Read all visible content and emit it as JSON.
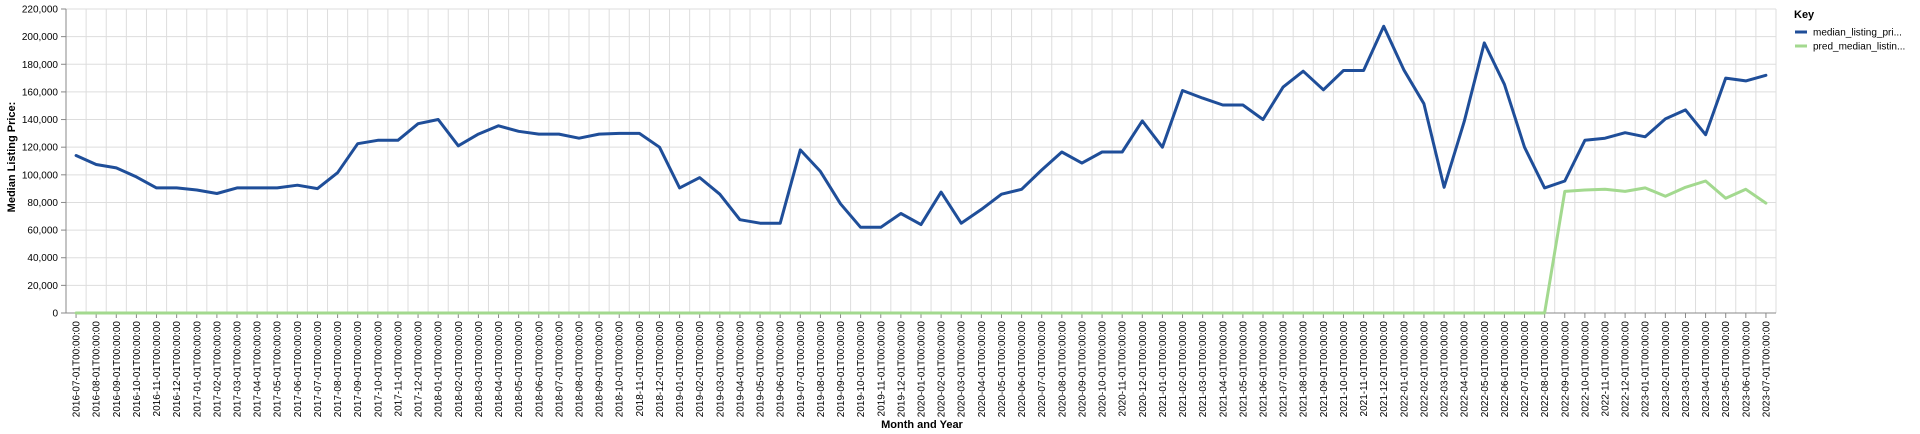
{
  "chart_data": {
    "type": "line",
    "xlabel": "Month and Year",
    "ylabel": "Median Listing Price:",
    "ylim": [
      0,
      220000
    ],
    "yticks": [
      "0",
      "20,000",
      "40,000",
      "60,000",
      "80,000",
      "100,000",
      "120,000",
      "140,000",
      "160,000",
      "180,000",
      "200,000",
      "220,000"
    ],
    "grid": true,
    "legend_position": "right",
    "legend_title": "Key",
    "categories": [
      "2016-07-01T00:00:00",
      "2016-08-01T00:00:00",
      "2016-09-01T00:00:00",
      "2016-10-01T00:00:00",
      "2016-11-01T00:00:00",
      "2016-12-01T00:00:00",
      "2017-01-01T00:00:00",
      "2017-02-01T00:00:00",
      "2017-03-01T00:00:00",
      "2017-04-01T00:00:00",
      "2017-05-01T00:00:00",
      "2017-06-01T00:00:00",
      "2017-07-01T00:00:00",
      "2017-08-01T00:00:00",
      "2017-09-01T00:00:00",
      "2017-10-01T00:00:00",
      "2017-11-01T00:00:00",
      "2017-12-01T00:00:00",
      "2018-01-01T00:00:00",
      "2018-02-01T00:00:00",
      "2018-03-01T00:00:00",
      "2018-04-01T00:00:00",
      "2018-05-01T00:00:00",
      "2018-06-01T00:00:00",
      "2018-07-01T00:00:00",
      "2018-08-01T00:00:00",
      "2018-09-01T00:00:00",
      "2018-10-01T00:00:00",
      "2018-11-01T00:00:00",
      "2018-12-01T00:00:00",
      "2019-01-01T00:00:00",
      "2019-02-01T00:00:00",
      "2019-03-01T00:00:00",
      "2019-04-01T00:00:00",
      "2019-05-01T00:00:00",
      "2019-06-01T00:00:00",
      "2019-07-01T00:00:00",
      "2019-08-01T00:00:00",
      "2019-09-01T00:00:00",
      "2019-10-01T00:00:00",
      "2019-11-01T00:00:00",
      "2019-12-01T00:00:00",
      "2020-01-01T00:00:00",
      "2020-02-01T00:00:00",
      "2020-03-01T00:00:00",
      "2020-04-01T00:00:00",
      "2020-05-01T00:00:00",
      "2020-06-01T00:00:00",
      "2020-07-01T00:00:00",
      "2020-08-01T00:00:00",
      "2020-09-01T00:00:00",
      "2020-10-01T00:00:00",
      "2020-11-01T00:00:00",
      "2020-12-01T00:00:00",
      "2021-01-01T00:00:00",
      "2021-02-01T00:00:00",
      "2021-03-01T00:00:00",
      "2021-04-01T00:00:00",
      "2021-05-01T00:00:00",
      "2021-06-01T00:00:00",
      "2021-07-01T00:00:00",
      "2021-08-01T00:00:00",
      "2021-09-01T00:00:00",
      "2021-10-01T00:00:00",
      "2021-11-01T00:00:00",
      "2021-12-01T00:00:00",
      "2022-01-01T00:00:00",
      "2022-02-01T00:00:00",
      "2022-03-01T00:00:00",
      "2022-04-01T00:00:00",
      "2022-05-01T00:00:00",
      "2022-06-01T00:00:00",
      "2022-07-01T00:00:00",
      "2022-08-01T00:00:00",
      "2022-09-01T00:00:00",
      "2022-10-01T00:00:00",
      "2022-11-01T00:00:00",
      "2022-12-01T00:00:00",
      "2023-01-01T00:00:00",
      "2023-02-01T00:00:00",
      "2023-03-01T00:00:00",
      "2023-04-01T00:00:00",
      "2023-05-01T00:00:00",
      "2023-06-01T00:00:00",
      "2023-07-01T00:00:00"
    ],
    "series": [
      {
        "name": "median_listing_pri...",
        "color": "#1f4e99",
        "values": [
          114000,
          107500,
          105000,
          98500,
          90500,
          90500,
          89000,
          86500,
          90500,
          90500,
          90500,
          92500,
          90000,
          101500,
          122500,
          125000,
          125000,
          137000,
          140000,
          121000,
          129500,
          135500,
          131500,
          129500,
          129500,
          126500,
          129500,
          130000,
          130000,
          120000,
          90500,
          98000,
          86000,
          67500,
          65000,
          65000,
          118000,
          102500,
          79000,
          62000,
          62000,
          72000,
          64000,
          87500,
          65000,
          75000,
          86000,
          89500,
          103500,
          116500,
          108500,
          116500,
          116500,
          139000,
          120000,
          161000,
          155500,
          150500,
          150500,
          140000,
          163500,
          175000,
          161500,
          175500,
          175500,
          207500,
          176000,
          151500,
          91000,
          138500,
          195500,
          165500,
          120000,
          90500,
          95500,
          125000,
          126500,
          130500,
          127500,
          140500,
          147000,
          129000,
          170000,
          168000,
          172000
        ]
      },
      {
        "name": "pred_median_listin...",
        "color": "#a3d98f",
        "values": [
          0,
          0,
          0,
          0,
          0,
          0,
          0,
          0,
          0,
          0,
          0,
          0,
          0,
          0,
          0,
          0,
          0,
          0,
          0,
          0,
          0,
          0,
          0,
          0,
          0,
          0,
          0,
          0,
          0,
          0,
          0,
          0,
          0,
          0,
          0,
          0,
          0,
          0,
          0,
          0,
          0,
          0,
          0,
          0,
          0,
          0,
          0,
          0,
          0,
          0,
          0,
          0,
          0,
          0,
          0,
          0,
          0,
          0,
          0,
          0,
          0,
          0,
          0,
          0,
          0,
          0,
          0,
          0,
          0,
          0,
          0,
          0,
          0,
          0,
          88000,
          89000,
          89500,
          88000,
          90500,
          84500,
          91000,
          95500,
          83000,
          89500,
          79500
        ]
      }
    ]
  }
}
